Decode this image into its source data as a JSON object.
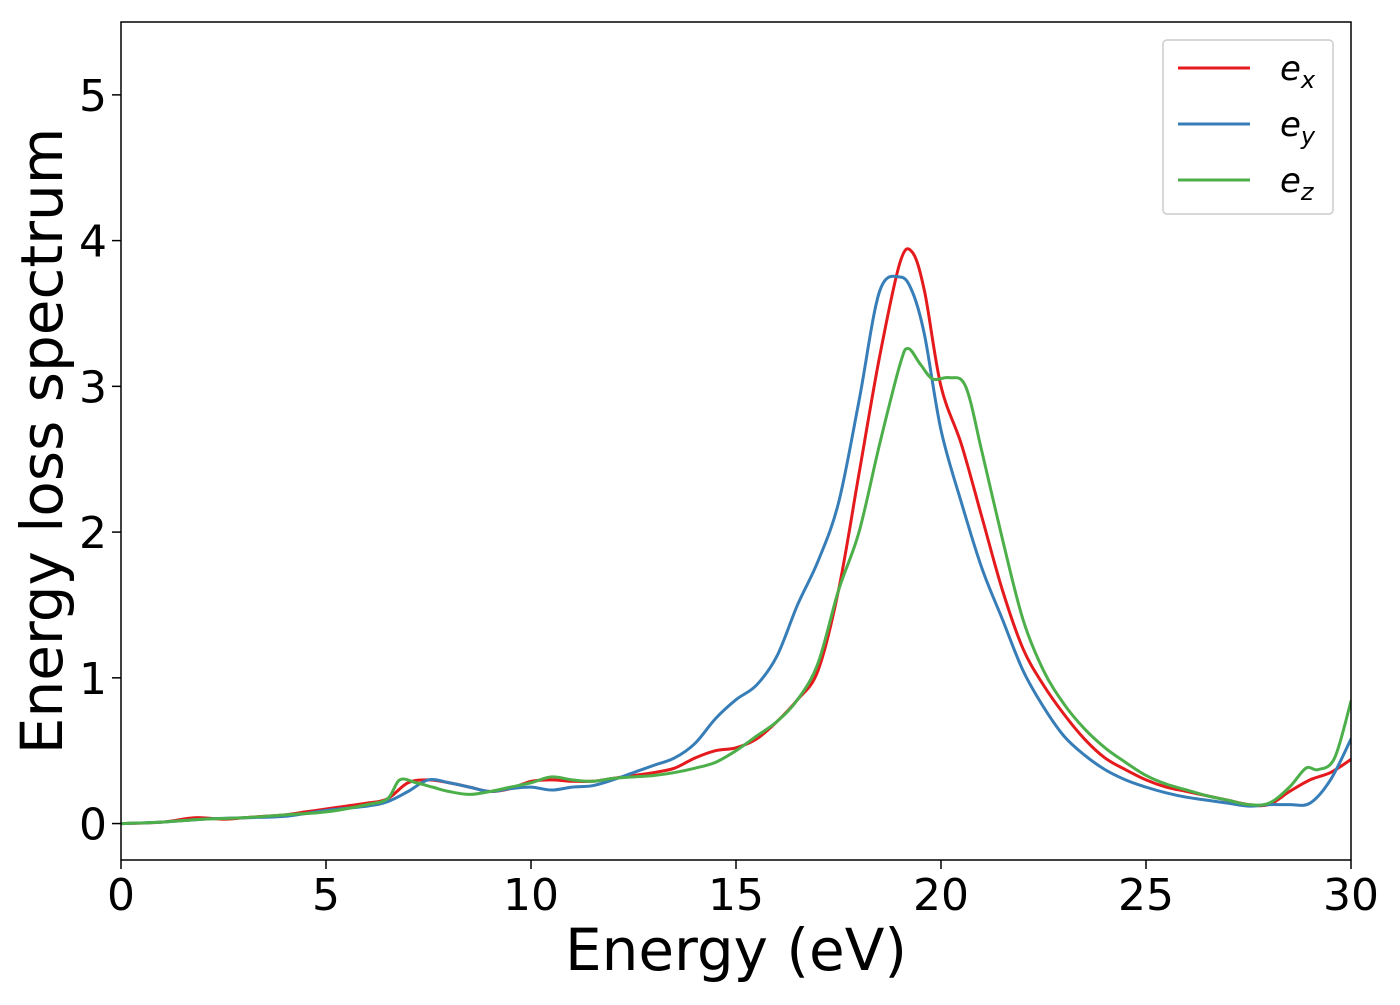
{
  "chart_data": {
    "type": "line",
    "title": "",
    "xlabel": "Energy (eV)",
    "ylabel": "Energy loss spectrum",
    "xlim": [
      0,
      30
    ],
    "ylim": [
      -0.25,
      5.5
    ],
    "xticks": [
      0,
      5,
      10,
      15,
      20,
      25,
      30
    ],
    "yticks": [
      0,
      1,
      2,
      3,
      4,
      5
    ],
    "grid": false,
    "legend_position": "top-right",
    "series": [
      {
        "name": "e_x",
        "label_base": "e",
        "label_sub": "x",
        "color": "#e41a1c",
        "x": [
          0,
          1,
          1.8,
          2.5,
          3,
          3.5,
          4,
          4.5,
          5,
          5.5,
          6,
          6.5,
          7,
          7.5,
          8,
          8.5,
          9,
          9.5,
          10,
          10.5,
          11,
          11.5,
          12,
          12.5,
          13,
          13.5,
          14,
          14.5,
          15,
          15.5,
          16,
          16.5,
          17,
          17.5,
          18,
          18.5,
          19,
          19.3,
          19.6,
          20,
          20.5,
          21,
          21.5,
          22,
          22.5,
          23,
          23.5,
          24,
          24.5,
          25,
          25.5,
          26,
          26.5,
          27,
          27.5,
          28,
          28.5,
          29,
          29.5,
          30
        ],
        "y": [
          0,
          0.01,
          0.04,
          0.03,
          0.04,
          0.05,
          0.06,
          0.08,
          0.1,
          0.12,
          0.14,
          0.17,
          0.28,
          0.3,
          0.28,
          0.25,
          0.22,
          0.24,
          0.29,
          0.3,
          0.29,
          0.29,
          0.31,
          0.33,
          0.35,
          0.38,
          0.45,
          0.5,
          0.52,
          0.58,
          0.7,
          0.85,
          1.05,
          1.6,
          2.4,
          3.2,
          3.85,
          3.92,
          3.65,
          3.0,
          2.6,
          2.1,
          1.6,
          1.2,
          0.95,
          0.75,
          0.58,
          0.45,
          0.37,
          0.3,
          0.25,
          0.22,
          0.19,
          0.16,
          0.13,
          0.13,
          0.22,
          0.3,
          0.35,
          0.44
        ]
      },
      {
        "name": "e_y",
        "label_base": "e",
        "label_sub": "y",
        "color": "#377eb8",
        "x": [
          0,
          1,
          2,
          3,
          4,
          5,
          6,
          6.5,
          7,
          7.5,
          8,
          8.5,
          9,
          9.5,
          10,
          10.5,
          11,
          11.5,
          12,
          12.5,
          13,
          13.5,
          14,
          14.5,
          15,
          15.5,
          16,
          16.5,
          17,
          17.5,
          18,
          18.5,
          19,
          19.3,
          19.6,
          20,
          20.5,
          21,
          21.5,
          22,
          22.5,
          23,
          23.5,
          24,
          24.5,
          25,
          25.5,
          26,
          26.5,
          27,
          27.5,
          28,
          28.5,
          29,
          29.5,
          30
        ],
        "y": [
          0,
          0.01,
          0.03,
          0.04,
          0.05,
          0.09,
          0.12,
          0.15,
          0.22,
          0.3,
          0.28,
          0.25,
          0.22,
          0.24,
          0.25,
          0.23,
          0.25,
          0.26,
          0.3,
          0.35,
          0.4,
          0.45,
          0.55,
          0.72,
          0.85,
          0.95,
          1.15,
          1.5,
          1.8,
          2.2,
          2.9,
          3.65,
          3.75,
          3.65,
          3.35,
          2.7,
          2.2,
          1.75,
          1.4,
          1.05,
          0.8,
          0.6,
          0.47,
          0.37,
          0.3,
          0.25,
          0.21,
          0.18,
          0.16,
          0.14,
          0.12,
          0.13,
          0.13,
          0.14,
          0.3,
          0.58
        ]
      },
      {
        "name": "e_z",
        "label_base": "e",
        "label_sub": "z",
        "color": "#4daf4a",
        "x": [
          0,
          1,
          2,
          3,
          4,
          5,
          6,
          6.5,
          6.8,
          7.2,
          7.6,
          8,
          8.5,
          9,
          9.5,
          10,
          10.5,
          11,
          11.5,
          12,
          12.5,
          13,
          13.5,
          14,
          14.5,
          15,
          15.5,
          16,
          16.5,
          17,
          17.5,
          18,
          18.5,
          19,
          19.2,
          19.5,
          19.8,
          20.2,
          20.6,
          21,
          21.5,
          22,
          22.5,
          23,
          23.5,
          24,
          24.5,
          25,
          25.5,
          26,
          26.5,
          27,
          27.5,
          28,
          28.5,
          28.9,
          29.2,
          29.6,
          30
        ],
        "y": [
          0,
          0.01,
          0.03,
          0.04,
          0.06,
          0.08,
          0.13,
          0.17,
          0.3,
          0.28,
          0.25,
          0.22,
          0.2,
          0.22,
          0.25,
          0.28,
          0.32,
          0.3,
          0.29,
          0.31,
          0.32,
          0.33,
          0.35,
          0.38,
          0.42,
          0.5,
          0.6,
          0.7,
          0.85,
          1.1,
          1.6,
          2.0,
          2.6,
          3.15,
          3.26,
          3.15,
          3.05,
          3.06,
          3.0,
          2.55,
          1.95,
          1.4,
          1.05,
          0.82,
          0.65,
          0.52,
          0.42,
          0.33,
          0.27,
          0.23,
          0.19,
          0.16,
          0.13,
          0.14,
          0.25,
          0.38,
          0.37,
          0.45,
          0.84
        ]
      }
    ]
  }
}
